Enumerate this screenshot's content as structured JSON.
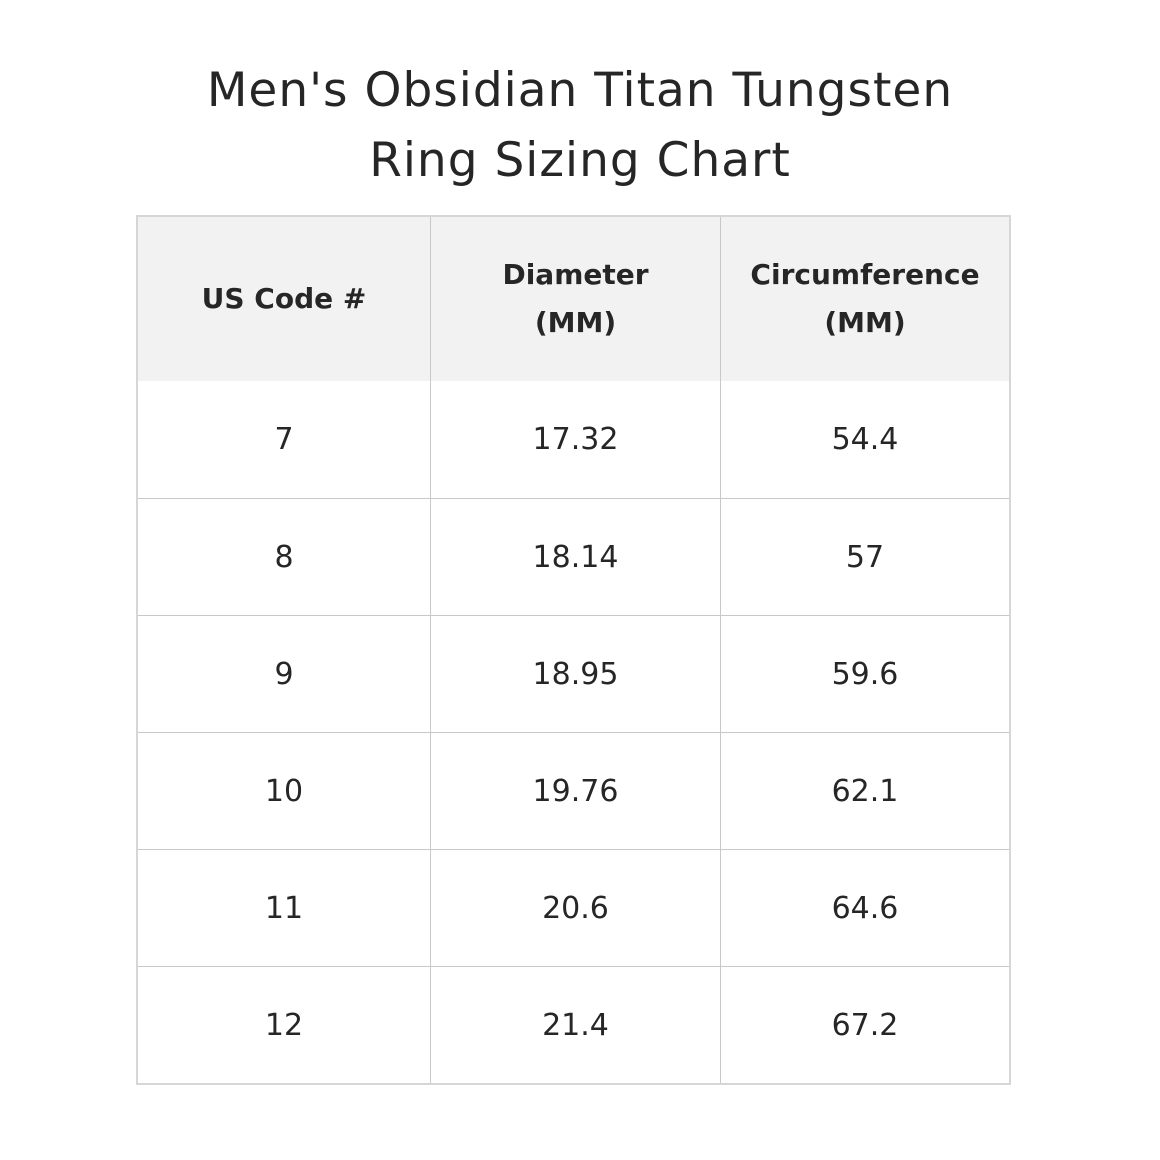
{
  "title_line1": "Men's Obsidian Titan Tungsten",
  "title_line2": "Ring Sizing Chart",
  "table": {
    "headers": [
      {
        "line1": "US Code #",
        "line2": ""
      },
      {
        "line1": "Diameter",
        "line2": "(MM)"
      },
      {
        "line1": "Circumference",
        "line2": "(MM)"
      }
    ],
    "rows": [
      [
        "7",
        "17.32",
        "54.4"
      ],
      [
        "8",
        "18.14",
        "57"
      ],
      [
        "9",
        "18.95",
        "59.6"
      ],
      [
        "10",
        "19.76",
        "62.1"
      ],
      [
        "11",
        "20.6",
        "64.6"
      ],
      [
        "12",
        "21.4",
        "67.2"
      ]
    ]
  },
  "colors": {
    "header_bg": "#f2f2f2",
    "border": "#d6d6d6",
    "text": "#262626"
  }
}
